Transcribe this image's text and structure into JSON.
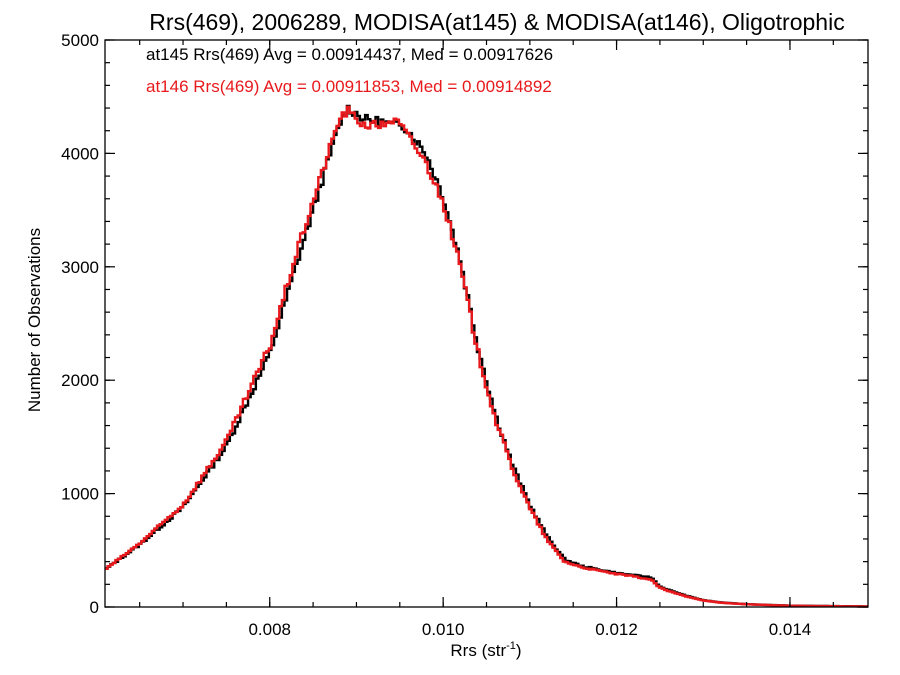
{
  "chart_data": {
    "type": "histogram",
    "title": "Rrs(469), 2006289, MODISA(at145) & MODISA(at146), Oligotrophic",
    "xlabel": "Rrs (str",
    "xlabel_sup": "-1",
    "xlabel_close": ")",
    "ylabel": "Number of Observations",
    "xlim": [
      0.0061,
      0.0149
    ],
    "ylim": [
      0,
      5000
    ],
    "x_ticks": [
      0.008,
      0.01,
      0.012,
      0.014
    ],
    "x_tick_labels": [
      "0.008",
      "0.010",
      "0.012",
      "0.014"
    ],
    "y_ticks": [
      0,
      1000,
      2000,
      3000,
      4000,
      5000
    ],
    "y_tick_labels": [
      "0",
      "1000",
      "2000",
      "3000",
      "4000",
      "5000"
    ],
    "x_minor_step": 0.0005,
    "y_minor_step": 200,
    "grid": false,
    "legend_position": "top-left",
    "annotations": [
      {
        "text": "at145 Rrs(469) Avg = 0.00914437, Med = 0.00917626",
        "color": "#000000"
      },
      {
        "text": "at146 Rrs(469) Avg = 0.00911853, Med = 0.00914892",
        "color": "#e8191c"
      }
    ],
    "series": [
      {
        "color": "#000000",
        "x": [
          0.0061,
          0.0065,
          0.007,
          0.0075,
          0.008,
          0.0083,
          0.0086,
          0.0088,
          0.0089,
          0.009,
          0.0091,
          0.0093,
          0.0094,
          0.0095,
          0.0096,
          0.0098,
          0.01,
          0.0102,
          0.0104,
          0.0106,
          0.0108,
          0.011,
          0.0112,
          0.0114,
          0.0116,
          0.0118,
          0.012,
          0.0122,
          0.0124,
          0.0125,
          0.0126,
          0.0128,
          0.013,
          0.0132,
          0.0135,
          0.014,
          0.0145,
          0.0149
        ],
        "y": [
          330,
          550,
          880,
          1420,
          2230,
          3000,
          3750,
          4250,
          4400,
          4350,
          4300,
          4280,
          4250,
          4270,
          4200,
          4000,
          3620,
          3050,
          2300,
          1700,
          1250,
          900,
          620,
          420,
          360,
          330,
          300,
          280,
          260,
          180,
          150,
          100,
          60,
          40,
          25,
          12,
          8,
          5
        ]
      },
      {
        "color": "#e8191c",
        "x": [
          0.0061,
          0.0065,
          0.007,
          0.0075,
          0.008,
          0.0083,
          0.0086,
          0.0088,
          0.0089,
          0.009,
          0.0091,
          0.0093,
          0.0094,
          0.0095,
          0.0096,
          0.0098,
          0.01,
          0.0102,
          0.0104,
          0.0106,
          0.0108,
          0.011,
          0.0112,
          0.0114,
          0.0116,
          0.0118,
          0.012,
          0.0122,
          0.0124,
          0.0125,
          0.0126,
          0.0128,
          0.013,
          0.0132,
          0.0135,
          0.014,
          0.0145,
          0.0149
        ],
        "y": [
          330,
          560,
          900,
          1460,
          2300,
          3100,
          3820,
          4300,
          4380,
          4300,
          4250,
          4250,
          4300,
          4260,
          4150,
          3920,
          3570,
          3000,
          2250,
          1660,
          1220,
          870,
          590,
          400,
          350,
          320,
          290,
          270,
          240,
          170,
          140,
          95,
          58,
          38,
          24,
          11,
          7,
          5
        ]
      }
    ]
  }
}
